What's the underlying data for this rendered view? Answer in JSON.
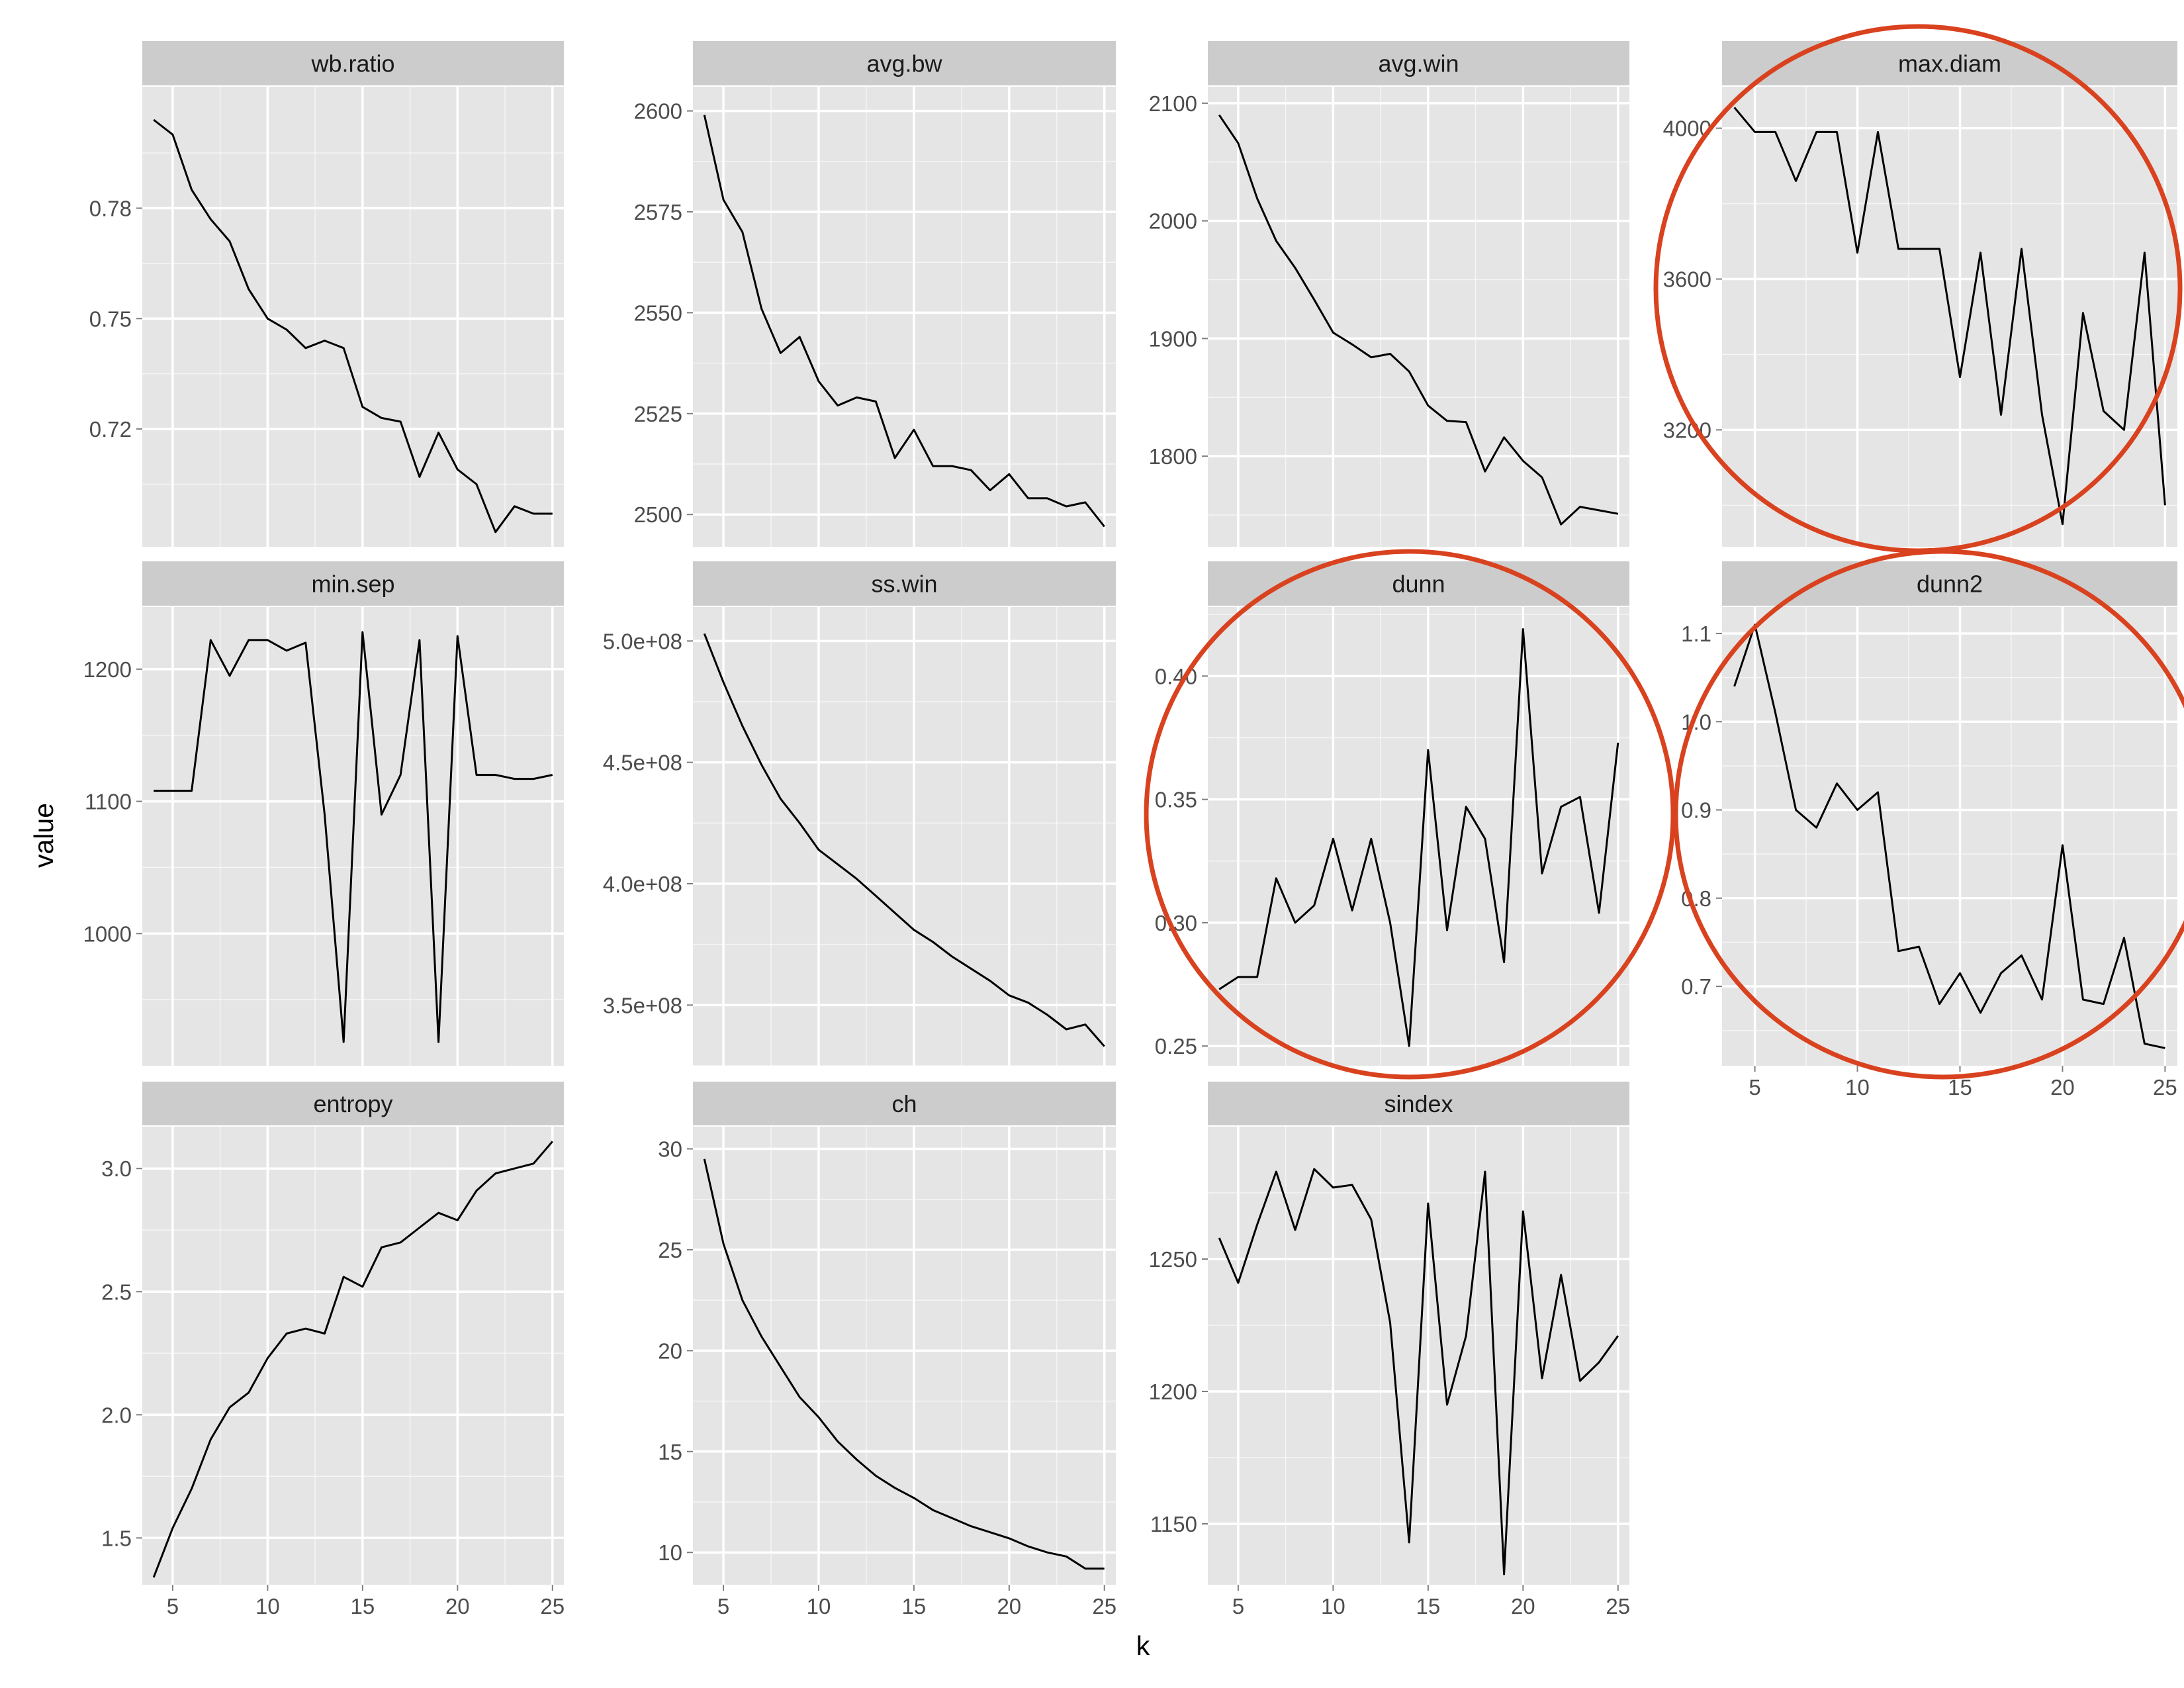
{
  "colors": {
    "panel_background": "#e5e5e5",
    "strip_background": "#cccccc",
    "grid": "#ffffff",
    "line": "#000000",
    "tick_text": "#4d4d4d",
    "annotation_circle": "#d9421f"
  },
  "chart_data": {
    "type": "line",
    "layout": "facet-wrap 4 columns, free y scales",
    "xlabel": "k",
    "ylabel": "value",
    "x_ticks": [
      5,
      10,
      15,
      20,
      25
    ],
    "xlim": [
      3.4,
      25.6
    ],
    "annotations": [
      "red circle around max.diam",
      "red circle around dunn",
      "red circle around dunn2"
    ],
    "x": [
      4,
      5,
      6,
      7,
      8,
      9,
      10,
      11,
      12,
      13,
      14,
      15,
      16,
      17,
      18,
      19,
      20,
      21,
      22,
      23,
      24,
      25
    ],
    "panels": [
      {
        "name": "wb.ratio",
        "ylim": [
          0.688,
          0.813
        ],
        "y_ticks": [
          0.72,
          0.75,
          0.78
        ],
        "y_tick_labels": [
          "0.72",
          "0.75",
          "0.78"
        ],
        "values": [
          0.804,
          0.8,
          0.785,
          0.777,
          0.771,
          0.758,
          0.75,
          0.747,
          0.742,
          0.744,
          0.742,
          0.726,
          0.723,
          0.722,
          0.707,
          0.719,
          0.709,
          0.705,
          0.692,
          0.699,
          0.697,
          0.697
        ]
      },
      {
        "name": "avg.bw",
        "ylim": [
          2492,
          2606
        ],
        "y_ticks": [
          2500,
          2525,
          2550,
          2575,
          2600
        ],
        "y_tick_labels": [
          "2500",
          "2525",
          "2550",
          "2575",
          "2600"
        ],
        "values": [
          2599,
          2578,
          2570,
          2551,
          2540,
          2544,
          2533,
          2527,
          2529,
          2528,
          2514,
          2521,
          2512,
          2512,
          2511,
          2506,
          2510,
          2504,
          2504,
          2502,
          2503,
          2497
        ]
      },
      {
        "name": "avg.win",
        "ylim": [
          1723,
          2114
        ],
        "y_ticks": [
          1800,
          1900,
          2000,
          2100
        ],
        "y_tick_labels": [
          "1800",
          "1900",
          "2000",
          "2100"
        ],
        "values": [
          2090,
          2066,
          2019,
          1983,
          1960,
          1933,
          1905,
          1895,
          1884,
          1887,
          1872,
          1843,
          1830,
          1829,
          1787,
          1816,
          1796,
          1782,
          1742,
          1757,
          1754,
          1751
        ]
      },
      {
        "name": "max.diam",
        "ylim": [
          2890,
          4110
        ],
        "y_ticks": [
          3200,
          3600,
          4000
        ],
        "y_tick_labels": [
          "3200",
          "3600",
          "4000"
        ],
        "values": [
          4055,
          3990,
          3990,
          3860,
          3990,
          3990,
          3670,
          3990,
          3680,
          3680,
          3680,
          3340,
          3670,
          3240,
          3680,
          3240,
          2950,
          3510,
          3250,
          3200,
          3670,
          3000
        ]
      },
      {
        "name": "min.sep",
        "ylim": [
          900,
          1247
        ],
        "y_ticks": [
          1000,
          1100,
          1200
        ],
        "y_tick_labels": [
          "1000",
          "1100",
          "1200"
        ],
        "values": [
          1108,
          1108,
          1108,
          1222,
          1195,
          1222,
          1222,
          1214,
          1220,
          1090,
          918,
          1228,
          1090,
          1120,
          1222,
          918,
          1225,
          1120,
          1120,
          1117,
          1117,
          1120
        ]
      },
      {
        "name": "ss.win",
        "ylim": [
          325000000.0,
          514000000.0
        ],
        "y_ticks": [
          350000000.0,
          400000000.0,
          450000000.0,
          500000000.0
        ],
        "y_tick_labels": [
          "3.5e+08",
          "4.0e+08",
          "4.5e+08",
          "5.0e+08"
        ],
        "values": [
          503000000.0,
          483000000.0,
          465000000.0,
          449000000.0,
          435000000.0,
          425000000.0,
          414000000.0,
          408000000.0,
          402000000.0,
          395000000.0,
          388000000.0,
          381000000.0,
          376000000.0,
          370000000.0,
          365000000.0,
          360000000.0,
          354000000.0,
          351000000.0,
          346000000.0,
          340000000.0,
          342000000.0,
          333000000.0
        ]
      },
      {
        "name": "dunn",
        "ylim": [
          0.242,
          0.428
        ],
        "y_ticks": [
          0.25,
          0.3,
          0.35,
          0.4
        ],
        "y_tick_labels": [
          "0.25",
          "0.30",
          "0.35",
          "0.40"
        ],
        "values": [
          0.273,
          0.278,
          0.278,
          0.318,
          0.3,
          0.307,
          0.334,
          0.305,
          0.334,
          0.3,
          0.25,
          0.37,
          0.297,
          0.347,
          0.334,
          0.284,
          0.419,
          0.32,
          0.347,
          0.351,
          0.304,
          0.373
        ]
      },
      {
        "name": "dunn2",
        "ylim": [
          0.61,
          1.13
        ],
        "y_ticks": [
          0.7,
          0.8,
          0.9,
          1.0,
          1.1
        ],
        "y_tick_labels": [
          "0.7",
          "0.8",
          "0.9",
          "1.0",
          "1.1"
        ],
        "values": [
          1.04,
          1.11,
          1.01,
          0.9,
          0.88,
          0.93,
          0.9,
          0.92,
          0.74,
          0.745,
          0.68,
          0.715,
          0.67,
          0.715,
          0.735,
          0.685,
          0.86,
          0.685,
          0.68,
          0.755,
          0.635,
          0.63
        ]
      },
      {
        "name": "entropy",
        "ylim": [
          1.31,
          3.17
        ],
        "y_ticks": [
          1.5,
          2.0,
          2.5,
          3.0
        ],
        "y_tick_labels": [
          "1.5",
          "2.0",
          "2.5",
          "3.0"
        ],
        "values": [
          1.34,
          1.54,
          1.7,
          1.9,
          2.03,
          2.09,
          2.23,
          2.33,
          2.35,
          2.33,
          2.56,
          2.52,
          2.68,
          2.7,
          2.76,
          2.82,
          2.79,
          2.91,
          2.98,
          3.0,
          3.02,
          3.11
        ]
      },
      {
        "name": "ch",
        "ylim": [
          8.4,
          31.1
        ],
        "y_ticks": [
          10,
          15,
          20,
          25,
          30
        ],
        "y_tick_labels": [
          "10",
          "15",
          "20",
          "25",
          "30"
        ],
        "values": [
          29.5,
          25.3,
          22.5,
          20.7,
          19.2,
          17.7,
          16.7,
          15.5,
          14.6,
          13.8,
          13.2,
          12.7,
          12.1,
          11.7,
          11.3,
          11.0,
          10.7,
          10.3,
          10.0,
          9.8,
          9.2,
          9.2
        ]
      },
      {
        "name": "sindex",
        "ylim": [
          1127,
          1300
        ],
        "y_ticks": [
          1150,
          1200,
          1250
        ],
        "y_tick_labels": [
          "1150",
          "1200",
          "1250"
        ],
        "values": [
          1258,
          1241,
          1263,
          1283,
          1261,
          1284,
          1277,
          1278,
          1265,
          1226,
          1143,
          1271,
          1195,
          1221,
          1283,
          1131,
          1268,
          1205,
          1244,
          1204,
          1211,
          1221
        ]
      }
    ]
  }
}
